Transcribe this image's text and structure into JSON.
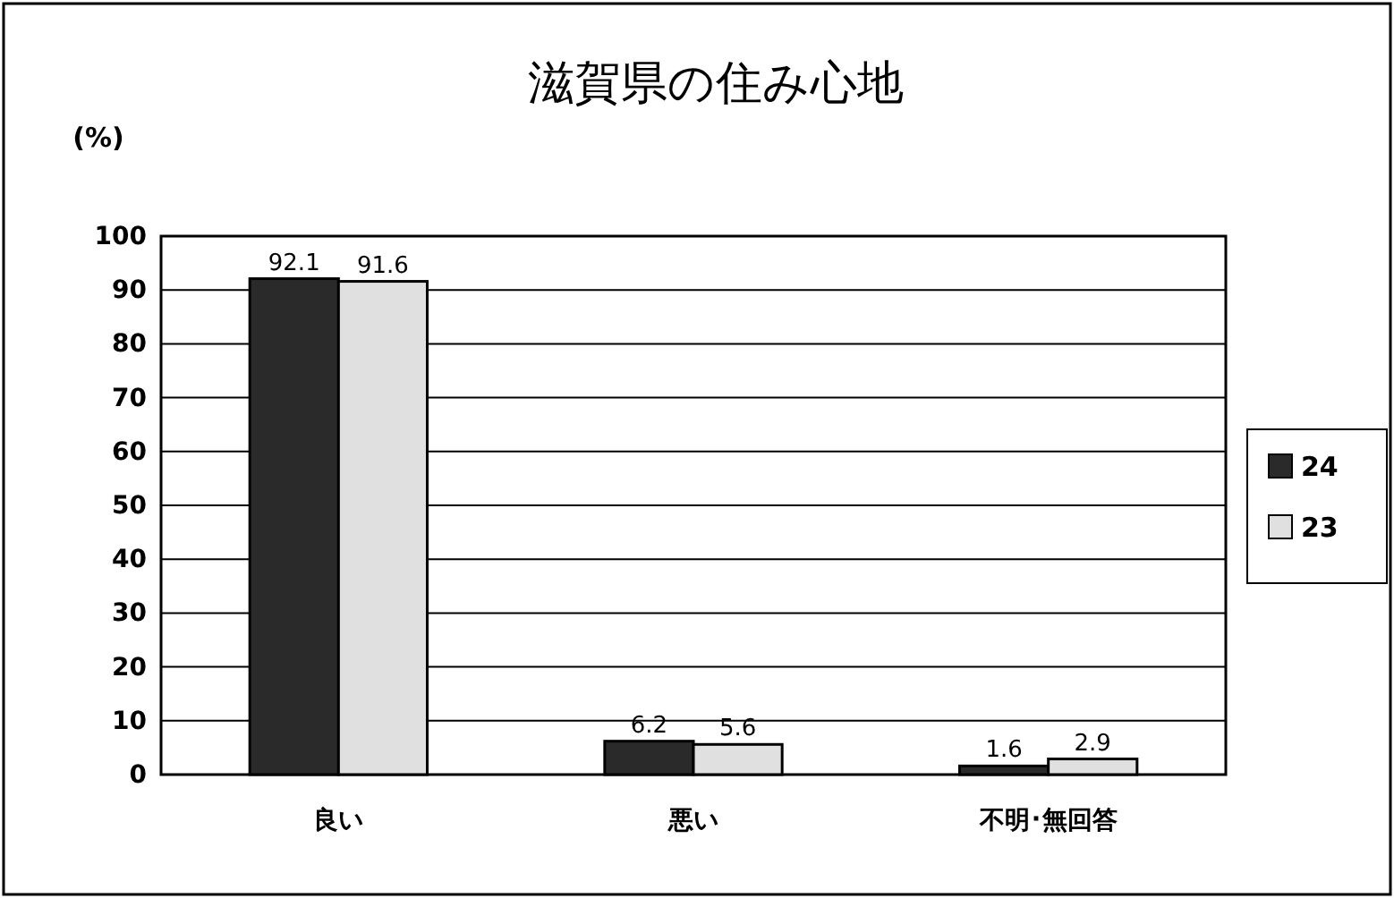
{
  "chart_data": {
    "type": "bar",
    "title": "滋賀県の住み心地",
    "ylabel": "(%)",
    "categories": [
      "良い",
      "悪い",
      "不明･無回答"
    ],
    "series": [
      {
        "name": "24",
        "color": "#2a2a2a",
        "values": [
          92.1,
          6.2,
          1.6
        ]
      },
      {
        "name": "23",
        "color": "#e0e0e0",
        "values": [
          91.6,
          5.6,
          2.9
        ]
      }
    ],
    "ylim": [
      0,
      100
    ],
    "yticks": [
      0,
      10,
      20,
      30,
      40,
      50,
      60,
      70,
      80,
      90,
      100
    ],
    "grid": "y",
    "legend": "right",
    "data_labels": true
  }
}
